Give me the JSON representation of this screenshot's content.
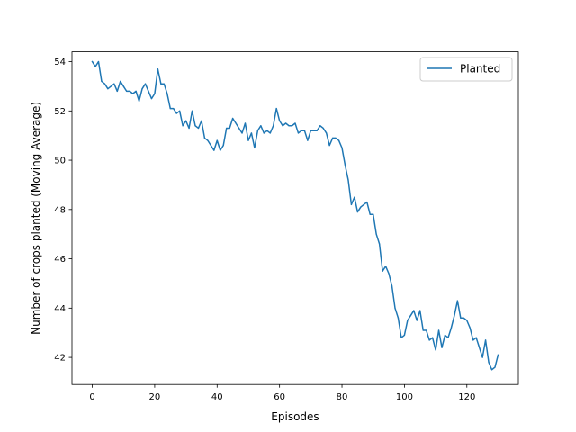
{
  "chart_data": {
    "type": "line",
    "title": "",
    "xlabel": "Episodes",
    "ylabel": "Number of crops planted (Moving Average)",
    "xlim": [
      -6.5,
      136.5
    ],
    "ylim": [
      40.9,
      54.4
    ],
    "xticks": [
      0,
      20,
      40,
      60,
      80,
      100,
      120
    ],
    "yticks": [
      42,
      44,
      46,
      48,
      50,
      52,
      54
    ],
    "grid": false,
    "legend_position": "upper right",
    "series": [
      {
        "name": "Planted",
        "color": "#1f77b4",
        "x": [
          0,
          1,
          2,
          3,
          4,
          5,
          6,
          7,
          8,
          9,
          10,
          11,
          12,
          13,
          14,
          15,
          16,
          17,
          18,
          19,
          20,
          21,
          22,
          23,
          24,
          25,
          26,
          27,
          28,
          29,
          30,
          31,
          32,
          33,
          34,
          35,
          36,
          37,
          38,
          39,
          40,
          41,
          42,
          43,
          44,
          45,
          46,
          47,
          48,
          49,
          50,
          51,
          52,
          53,
          54,
          55,
          56,
          57,
          58,
          59,
          60,
          61,
          62,
          63,
          64,
          65,
          66,
          67,
          68,
          69,
          70,
          71,
          72,
          73,
          74,
          75,
          76,
          77,
          78,
          79,
          80,
          81,
          82,
          83,
          84,
          85,
          86,
          87,
          88,
          89,
          90,
          91,
          92,
          93,
          94,
          95,
          96,
          97,
          98,
          99,
          100,
          101,
          102,
          103,
          104,
          105,
          106,
          107,
          108,
          109,
          110,
          111,
          112,
          113,
          114,
          115,
          116,
          117,
          118,
          119,
          120,
          121,
          122,
          123,
          124,
          125,
          126,
          127,
          128,
          129,
          130
        ],
        "y": [
          54.0,
          53.8,
          54.0,
          53.2,
          53.1,
          52.9,
          53.0,
          53.1,
          52.8,
          53.2,
          53.0,
          52.8,
          52.8,
          52.7,
          52.8,
          52.4,
          52.9,
          53.1,
          52.8,
          52.5,
          52.7,
          53.7,
          53.1,
          53.1,
          52.7,
          52.1,
          52.1,
          51.9,
          52.0,
          51.4,
          51.6,
          51.3,
          52.0,
          51.4,
          51.3,
          51.6,
          50.9,
          50.8,
          50.6,
          50.4,
          50.8,
          50.4,
          50.6,
          51.3,
          51.3,
          51.7,
          51.5,
          51.3,
          51.1,
          51.5,
          50.8,
          51.1,
          50.5,
          51.2,
          51.4,
          51.1,
          51.2,
          51.1,
          51.4,
          52.1,
          51.6,
          51.4,
          51.5,
          51.4,
          51.4,
          51.5,
          51.1,
          51.2,
          51.2,
          50.8,
          51.2,
          51.2,
          51.2,
          51.4,
          51.3,
          51.1,
          50.6,
          50.9,
          50.9,
          50.8,
          50.5,
          49.8,
          49.2,
          48.2,
          48.5,
          47.9,
          48.1,
          48.2,
          48.3,
          47.8,
          47.8,
          47.0,
          46.6,
          45.5,
          45.7,
          45.4,
          44.9,
          44.0,
          43.6,
          42.8,
          42.9,
          43.5,
          43.7,
          43.9,
          43.5,
          43.9,
          43.1,
          43.1,
          42.7,
          42.8,
          42.3,
          43.1,
          42.4,
          42.9,
          42.8,
          43.2,
          43.7,
          44.3,
          43.6,
          43.6,
          43.5,
          43.2,
          42.7,
          42.8,
          42.4,
          42.0,
          42.7,
          41.8,
          41.5,
          41.6,
          42.1
        ]
      }
    ]
  }
}
